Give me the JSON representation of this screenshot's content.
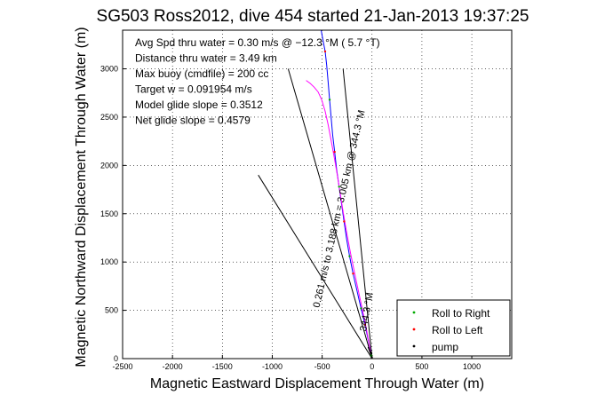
{
  "chart_data": {
    "type": "line",
    "title": "SG503 Ross2012, dive 454 started 21-Jan-2013 19:37:25",
    "xlabel": "Magnetic Eastward Displacement Through Water (m)",
    "ylabel": "Magnetic Northward Displacement Through Water (m)",
    "xlim": [
      -2500,
      1400
    ],
    "ylim": [
      0,
      3400
    ],
    "xticks": [
      -2500,
      -2000,
      -1500,
      -1000,
      -500,
      0,
      500,
      1000
    ],
    "yticks": [
      0,
      500,
      1000,
      1500,
      2000,
      2500,
      3000
    ],
    "grid": true,
    "annotations": [
      "Avg Spd thru water =  0.30 m/s @ −12.3   °M (  5.7 °T)",
      "Distance thru water =  3.49 km",
      "Max buoy (cmdfile) = 200 cc",
      "Target w = 0.091954 m/s",
      "Model glide slope = 0.3512",
      "Net glide slope = 0.4579"
    ],
    "line_labels": [
      "0.261 m/s to 3.188 km = 3.005 km @ 344.3 °M",
      "344.3 °M"
    ],
    "series": [
      {
        "color": "#0000ff",
        "x": [
          0,
          -15,
          -40,
          -70,
          -110,
          -150,
          -190,
          -225,
          -255,
          -280,
          -305,
          -330,
          -355,
          -375,
          -395,
          -410,
          -425,
          -440,
          -455,
          -470,
          -490,
          -510
        ],
        "y": [
          0,
          80,
          200,
          350,
          520,
          700,
          880,
          1060,
          1240,
          1420,
          1600,
          1780,
          1960,
          2140,
          2320,
          2500,
          2680,
          2860,
          3040,
          3180,
          3290,
          3400
        ]
      },
      {
        "color": "#ff00ff",
        "x": [
          -5,
          -30,
          -70,
          -120,
          -170,
          -215,
          -255,
          -290,
          -320,
          -350,
          -380,
          -410,
          -440,
          -470,
          -505,
          -540,
          -580,
          -620,
          -660
        ],
        "y": [
          0,
          160,
          380,
          620,
          860,
          1090,
          1310,
          1520,
          1720,
          1910,
          2090,
          2260,
          2420,
          2560,
          2680,
          2760,
          2810,
          2850,
          2880
        ]
      },
      {
        "color": "#000000",
        "x": [
          0,
          -1140
        ],
        "y": [
          0,
          1900
        ]
      },
      {
        "color": "#000000",
        "x": [
          0,
          -840
        ],
        "y": [
          0,
          3000
        ]
      },
      {
        "color": "#000000",
        "x": [
          0,
          -290
        ],
        "y": [
          0,
          3000
        ]
      },
      {
        "color": "#000000",
        "x": [
          0,
          -40
        ],
        "y": [
          0,
          120
        ]
      }
    ],
    "markers": [
      {
        "color": "#00aa00",
        "x": [
          -5,
          -110,
          -225,
          -330,
          -425
        ],
        "y": [
          30,
          520,
          1060,
          1780,
          2680
        ]
      },
      {
        "color": "#ff0000",
        "x": [
          -70,
          -190,
          -280,
          -375,
          -470
        ],
        "y": [
          350,
          880,
          1420,
          2140,
          3180
        ]
      },
      {
        "color": "#000000",
        "x": [
          -2,
          -8
        ],
        "y": [
          10,
          60
        ]
      }
    ],
    "legend": {
      "placement": "bottom-right",
      "entries": [
        {
          "label": "Roll to Right",
          "color": "#00aa00"
        },
        {
          "label": "Roll to Left",
          "color": "#ff0000"
        },
        {
          "label": "pump",
          "color": "#000000"
        }
      ]
    }
  }
}
